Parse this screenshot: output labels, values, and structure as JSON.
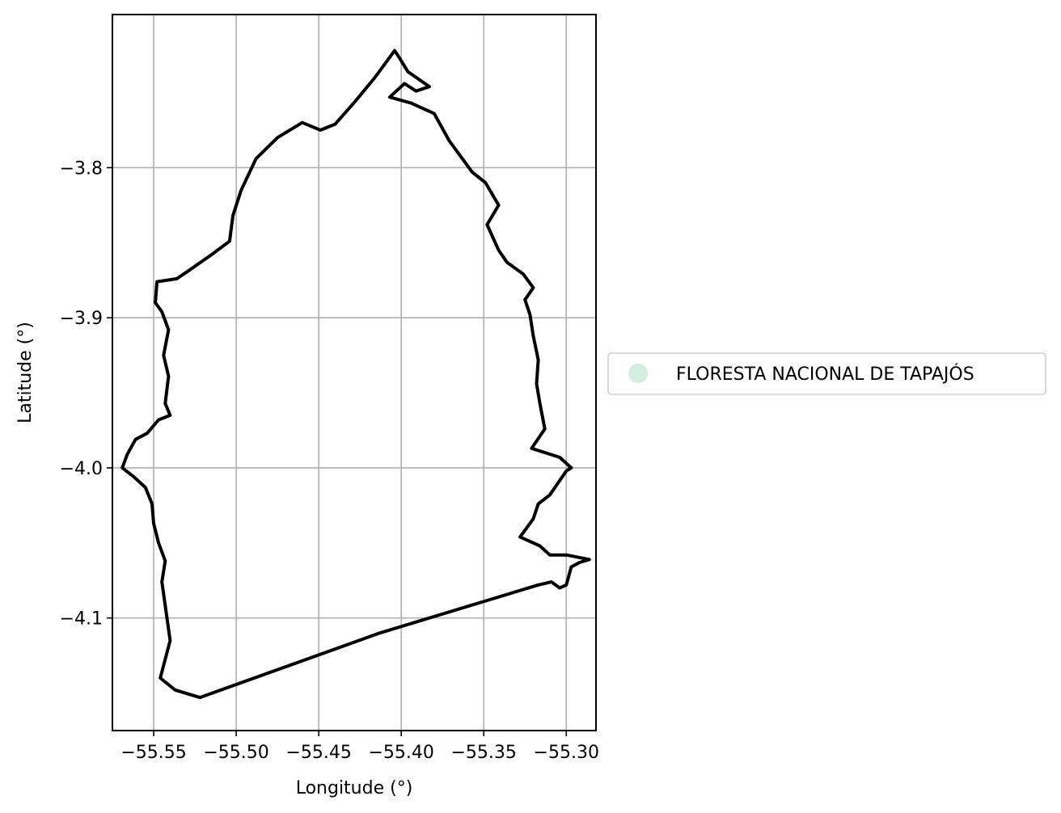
{
  "chart_data": {
    "type": "map",
    "xlabel": "Longitude (°)",
    "ylabel": "Latitude (°)",
    "xlim": [
      -55.575,
      -55.282
    ],
    "ylim": [
      -4.175,
      -3.698
    ],
    "xticks": [
      -55.55,
      -55.5,
      -55.45,
      -55.4,
      -55.35,
      -55.3
    ],
    "xtick_labels": [
      "−55.55",
      "−55.50",
      "−55.45",
      "−55.40",
      "−55.35",
      "−55.30"
    ],
    "yticks": [
      -3.8,
      -3.9,
      -4.0,
      -4.1
    ],
    "ytick_labels": [
      "−3.8",
      "−3.9",
      "−4.0",
      "−4.1"
    ],
    "grid": true,
    "legend": {
      "placement": "outside-right",
      "entries": [
        {
          "label": "FLORESTA NACIONAL DE TAPAJÓS",
          "color": "#d3ede1"
        }
      ]
    },
    "boundary_color": "#000000",
    "boundary": [
      [
        -55.46,
        -3.77
      ],
      [
        -55.475,
        -3.78
      ],
      [
        -55.488,
        -3.794
      ],
      [
        -55.497,
        -3.815
      ],
      [
        -55.502,
        -3.832
      ],
      [
        -55.504,
        -3.849
      ],
      [
        -55.515,
        -3.858
      ],
      [
        -55.528,
        -3.868
      ],
      [
        -55.536,
        -3.874
      ],
      [
        -55.548,
        -3.876
      ],
      [
        -55.549,
        -3.89
      ],
      [
        -55.545,
        -3.896
      ],
      [
        -55.541,
        -3.908
      ],
      [
        -55.544,
        -3.925
      ],
      [
        -55.541,
        -3.939
      ],
      [
        -55.543,
        -3.957
      ],
      [
        -55.54,
        -3.965
      ],
      [
        -55.547,
        -3.968
      ],
      [
        -55.554,
        -3.977
      ],
      [
        -55.561,
        -3.981
      ],
      [
        -55.566,
        -3.991
      ],
      [
        -55.569,
        -4.0
      ],
      [
        -55.562,
        -4.006
      ],
      [
        -55.555,
        -4.013
      ],
      [
        -55.551,
        -4.024
      ],
      [
        -55.55,
        -4.037
      ],
      [
        -55.547,
        -4.05
      ],
      [
        -55.543,
        -4.062
      ],
      [
        -55.545,
        -4.076
      ],
      [
        -55.54,
        -4.115
      ],
      [
        -55.546,
        -4.14
      ],
      [
        -55.537,
        -4.148
      ],
      [
        -55.522,
        -4.153
      ],
      [
        -55.413,
        -4.11
      ],
      [
        -55.317,
        -4.078
      ],
      [
        -55.309,
        -4.076
      ],
      [
        -55.304,
        -4.08
      ],
      [
        -55.3,
        -4.078
      ],
      [
        -55.297,
        -4.066
      ],
      [
        -55.292,
        -4.063
      ],
      [
        -55.286,
        -4.061
      ],
      [
        -55.3,
        -4.058
      ],
      [
        -55.31,
        -4.058
      ],
      [
        -55.316,
        -4.052
      ],
      [
        -55.328,
        -4.046
      ],
      [
        -55.32,
        -4.034
      ],
      [
        -55.317,
        -4.024
      ],
      [
        -55.31,
        -4.018
      ],
      [
        -55.3,
        -4.002
      ],
      [
        -55.297,
        -4.0
      ],
      [
        -55.304,
        -3.993
      ],
      [
        -55.321,
        -3.987
      ],
      [
        -55.313,
        -3.974
      ],
      [
        -55.316,
        -3.957
      ],
      [
        -55.318,
        -3.944
      ],
      [
        -55.317,
        -3.928
      ],
      [
        -55.32,
        -3.912
      ],
      [
        -55.322,
        -3.898
      ],
      [
        -55.325,
        -3.888
      ],
      [
        -55.32,
        -3.88
      ],
      [
        -55.326,
        -3.871
      ],
      [
        -55.336,
        -3.863
      ],
      [
        -55.341,
        -3.855
      ],
      [
        -55.348,
        -3.838
      ],
      [
        -55.341,
        -3.825
      ],
      [
        -55.349,
        -3.81
      ],
      [
        -55.357,
        -3.803
      ],
      [
        -55.363,
        -3.794
      ],
      [
        -55.371,
        -3.782
      ],
      [
        -55.38,
        -3.764
      ],
      [
        -55.394,
        -3.757
      ],
      [
        -55.407,
        -3.753
      ],
      [
        -55.398,
        -3.744
      ],
      [
        -55.391,
        -3.749
      ],
      [
        -55.383,
        -3.746
      ],
      [
        -55.396,
        -3.736
      ],
      [
        -55.401,
        -3.727
      ],
      [
        -55.404,
        -3.722
      ],
      [
        -55.416,
        -3.74
      ],
      [
        -55.428,
        -3.756
      ],
      [
        -55.44,
        -3.771
      ],
      [
        -55.449,
        -3.775
      ],
      [
        -55.46,
        -3.77
      ]
    ]
  }
}
